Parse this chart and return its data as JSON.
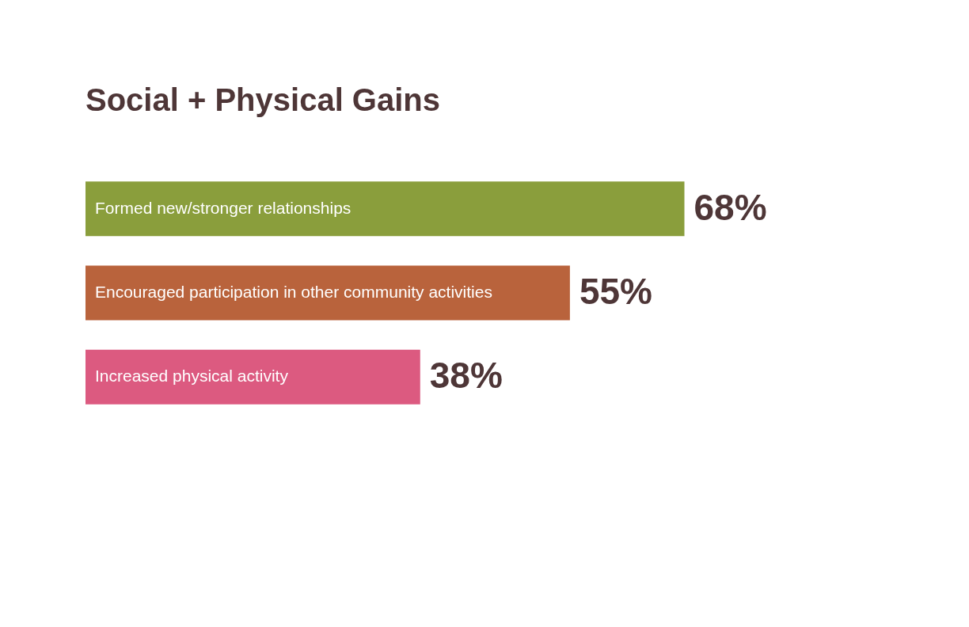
{
  "chart_data": {
    "type": "bar",
    "orientation": "horizontal",
    "title": "Social + Physical Gains",
    "categories": [
      "Formed new/stronger relationships",
      "Encouraged participation in other community activities",
      "Increased physical activity"
    ],
    "values": [
      68,
      55,
      38
    ],
    "colors": [
      "#8a9e3c",
      "#b9633c",
      "#dc5a80"
    ],
    "value_labels": [
      "68%",
      "55%",
      "38%"
    ]
  }
}
